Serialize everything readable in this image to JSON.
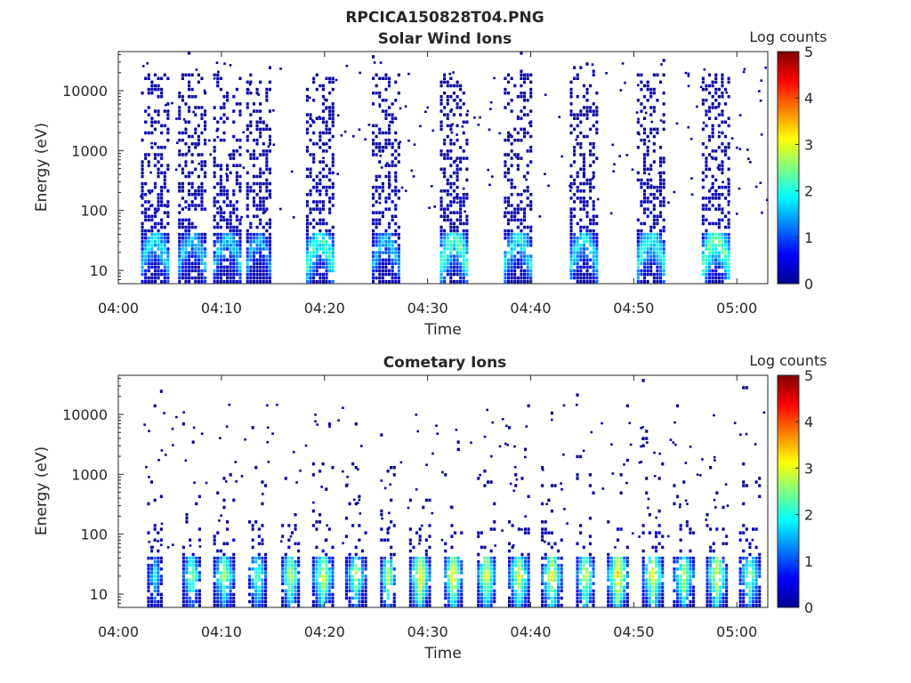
{
  "figure": {
    "title": "RPCICA150828T04.PNG",
    "background": "#ffffff"
  },
  "chart_data": [
    {
      "type": "heatmap",
      "title": "Solar Wind Ions",
      "xlabel": "Time",
      "ylabel": "Energy (eV)",
      "x_ticks": [
        "04:00",
        "04:10",
        "04:20",
        "04:30",
        "04:40",
        "04:50",
        "05:00"
      ],
      "x_range_minutes": [
        0,
        63
      ],
      "y_scale": "log",
      "y_range": [
        6,
        45000
      ],
      "y_ticks": [
        "10",
        "100",
        "1000",
        "10000"
      ],
      "colorbar": {
        "label": "Log counts",
        "range": [
          0,
          5
        ],
        "ticks": [
          "0",
          "1",
          "2",
          "3",
          "4",
          "5"
        ],
        "colormap": "jet"
      },
      "grid": false,
      "sweeps": [
        {
          "start_min": 2.2,
          "end_min": 5.0,
          "peak_log_counts": 2.1
        },
        {
          "start_min": 5.8,
          "end_min": 8.6,
          "peak_log_counts": 2.0
        },
        {
          "start_min": 9.2,
          "end_min": 12.0,
          "peak_log_counts": 2.0
        },
        {
          "start_min": 12.4,
          "end_min": 15.0,
          "peak_log_counts": 1.8
        },
        {
          "start_min": 18.2,
          "end_min": 21.3,
          "peak_log_counts": 2.5
        },
        {
          "start_min": 24.6,
          "end_min": 27.4,
          "peak_log_counts": 1.9
        },
        {
          "start_min": 31.2,
          "end_min": 34.0,
          "peak_log_counts": 2.6
        },
        {
          "start_min": 37.4,
          "end_min": 40.2,
          "peak_log_counts": 2.2
        },
        {
          "start_min": 43.8,
          "end_min": 46.7,
          "peak_log_counts": 2.2
        },
        {
          "start_min": 50.3,
          "end_min": 53.2,
          "peak_log_counts": 2.3
        },
        {
          "start_min": 56.6,
          "end_min": 59.4,
          "peak_log_counts": 2.7
        }
      ]
    },
    {
      "type": "heatmap",
      "title": "Cometary Ions",
      "xlabel": "Time",
      "ylabel": "Energy (eV)",
      "x_ticks": [
        "04:00",
        "04:10",
        "04:20",
        "04:30",
        "04:40",
        "04:50",
        "05:00"
      ],
      "x_range_minutes": [
        0,
        63
      ],
      "y_scale": "log",
      "y_range": [
        6,
        45000
      ],
      "y_ticks": [
        "10",
        "100",
        "1000",
        "10000"
      ],
      "colorbar": {
        "label": "Log counts",
        "range": [
          0,
          5
        ],
        "ticks": [
          "0",
          "1",
          "2",
          "3",
          "4",
          "5"
        ],
        "colormap": "jet"
      },
      "grid": false,
      "sweeps": [
        {
          "start_min": 2.8,
          "end_min": 4.6,
          "peak_log_counts": 2.4
        },
        {
          "start_min": 6.2,
          "end_min": 8.2,
          "peak_log_counts": 3.0
        },
        {
          "start_min": 9.2,
          "end_min": 11.4,
          "peak_log_counts": 3.1
        },
        {
          "start_min": 12.6,
          "end_min": 14.6,
          "peak_log_counts": 2.9
        },
        {
          "start_min": 15.8,
          "end_min": 17.8,
          "peak_log_counts": 3.3
        },
        {
          "start_min": 18.8,
          "end_min": 21.2,
          "peak_log_counts": 3.4
        },
        {
          "start_min": 22.0,
          "end_min": 24.2,
          "peak_log_counts": 3.0
        },
        {
          "start_min": 25.4,
          "end_min": 27.2,
          "peak_log_counts": 3.2
        },
        {
          "start_min": 28.2,
          "end_min": 30.4,
          "peak_log_counts": 3.6
        },
        {
          "start_min": 31.6,
          "end_min": 33.6,
          "peak_log_counts": 3.7
        },
        {
          "start_min": 34.8,
          "end_min": 36.8,
          "peak_log_counts": 3.6
        },
        {
          "start_min": 37.8,
          "end_min": 40.2,
          "peak_log_counts": 3.4
        },
        {
          "start_min": 41.0,
          "end_min": 43.2,
          "peak_log_counts": 3.5
        },
        {
          "start_min": 44.4,
          "end_min": 46.4,
          "peak_log_counts": 3.5
        },
        {
          "start_min": 47.4,
          "end_min": 49.8,
          "peak_log_counts": 3.8
        },
        {
          "start_min": 50.8,
          "end_min": 53.0,
          "peak_log_counts": 3.6
        },
        {
          "start_min": 53.8,
          "end_min": 56.0,
          "peak_log_counts": 3.2
        },
        {
          "start_min": 57.0,
          "end_min": 59.2,
          "peak_log_counts": 3.5
        },
        {
          "start_min": 60.2,
          "end_min": 62.6,
          "peak_log_counts": 3.0
        }
      ]
    }
  ]
}
